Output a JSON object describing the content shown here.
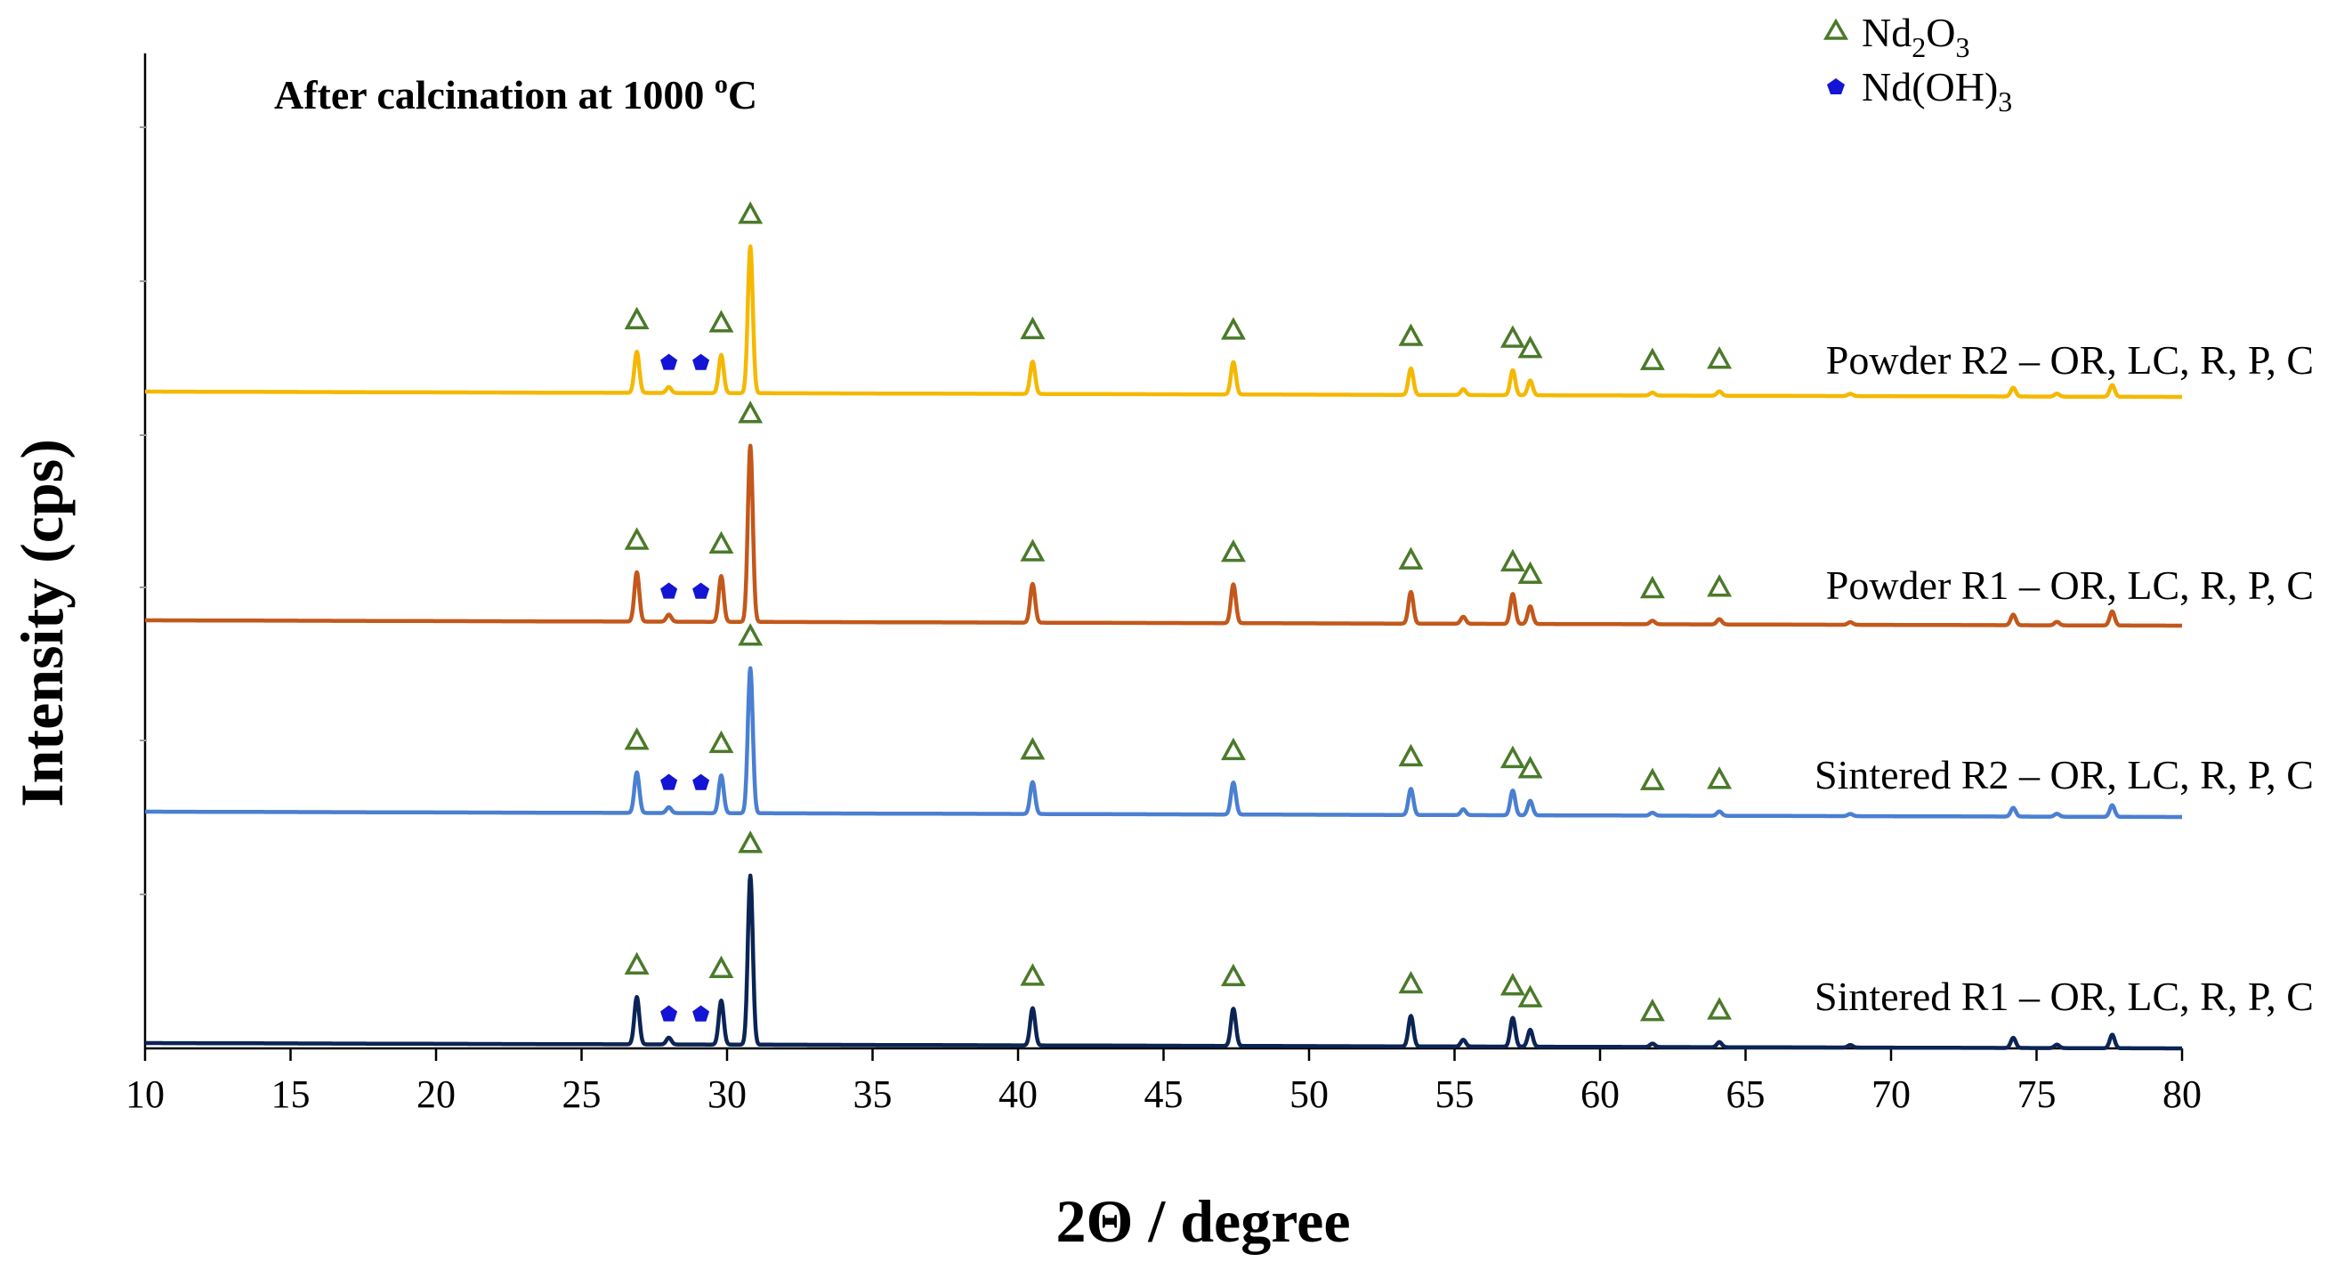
{
  "chart_data": {
    "type": "line",
    "title": "",
    "annotation": {
      "prefix": "After calcination at 1000 ",
      "sup": "o",
      "suffix": "C"
    },
    "xlabel": "2Θ / degree",
    "ylabel": "Intensity (cps)",
    "xlim": [
      10,
      80
    ],
    "x_ticks": [
      10,
      15,
      20,
      25,
      30,
      35,
      40,
      45,
      50,
      55,
      60,
      65,
      70,
      75,
      80
    ],
    "y_ticks_labeled": false,
    "legend": {
      "placement": "top-right",
      "entries": [
        {
          "marker": "triangle",
          "base": "Nd",
          "sub1": "2",
          "mid": "O",
          "sub2": "3",
          "color": "#4a7a2a"
        },
        {
          "marker": "pentagon",
          "base": "Nd(OH)",
          "sub1": "3",
          "mid": "",
          "sub2": "",
          "color": "#1414d4"
        }
      ]
    },
    "series": [
      {
        "name": "Powder R2 – OR, LC, R, P, C",
        "color": "#f5b800",
        "offset": 3
      },
      {
        "name": "Powder R1 – OR, LC, R, P, C",
        "color": "#c2581b",
        "offset": 2
      },
      {
        "name": "Sintered R2 – OR, LC, R, P, C",
        "color": "#4a7fd1",
        "offset": 1
      },
      {
        "name": "Sintered R1 – OR, LC, R, P, C",
        "color": "#0c2455",
        "offset": 0
      }
    ],
    "peaks": [
      {
        "x": 26.9,
        "rel": 0.28,
        "phase": "Nd2O3"
      },
      {
        "x": 28.0,
        "rel": 0.04,
        "phase": "Nd(OH)3"
      },
      {
        "x": 29.8,
        "rel": 0.26,
        "phase": "Nd2O3"
      },
      {
        "x": 30.8,
        "rel": 1.0,
        "phase": "Nd2O3"
      },
      {
        "x": 40.5,
        "rel": 0.22,
        "phase": "Nd2O3"
      },
      {
        "x": 47.4,
        "rel": 0.22,
        "phase": "Nd2O3"
      },
      {
        "x": 53.5,
        "rel": 0.18,
        "phase": "Nd2O3"
      },
      {
        "x": 55.3,
        "rel": 0.04,
        "phase": ""
      },
      {
        "x": 57.0,
        "rel": 0.17,
        "phase": "Nd2O3"
      },
      {
        "x": 57.6,
        "rel": 0.1,
        "phase": "Nd2O3"
      },
      {
        "x": 61.8,
        "rel": 0.02,
        "phase": "Nd2O3"
      },
      {
        "x": 64.1,
        "rel": 0.03,
        "phase": "Nd2O3"
      },
      {
        "x": 68.6,
        "rel": 0.015,
        "phase": ""
      },
      {
        "x": 74.2,
        "rel": 0.06,
        "phase": ""
      },
      {
        "x": 75.7,
        "rel": 0.02,
        "phase": ""
      },
      {
        "x": 77.6,
        "rel": 0.08,
        "phase": ""
      }
    ],
    "nd2o3_markers": [
      26.9,
      29.8,
      30.8,
      40.5,
      47.4,
      53.5,
      57.0,
      57.6,
      61.8,
      64.1
    ],
    "ndoh3_markers": [
      28.0,
      29.1
    ],
    "grid": false
  }
}
